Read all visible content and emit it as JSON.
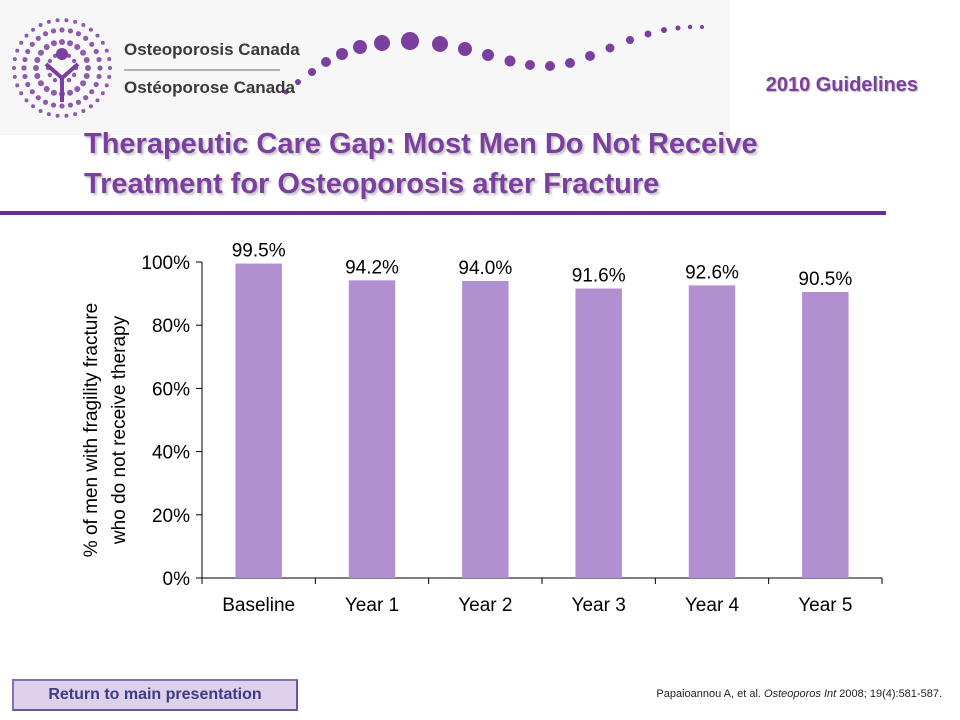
{
  "logo": {
    "name_en": "Osteoporosis Canada",
    "name_fr": "Ostéoporose Canada",
    "brand_color": "#7b3fa0"
  },
  "header": {
    "guidelines_label": "2010 Guidelines"
  },
  "slide": {
    "title": "Therapeutic Care Gap: Most Men Do Not Receive Treatment for Osteoporosis after Fracture"
  },
  "chart_data": {
    "type": "bar",
    "categories": [
      "Baseline",
      "Year 1",
      "Year 2",
      "Year 3",
      "Year 4",
      "Year 5"
    ],
    "values": [
      99.5,
      94.2,
      94.0,
      91.6,
      92.6,
      90.5
    ],
    "data_labels": [
      "99.5%",
      "94.2%",
      "94.0%",
      "91.6%",
      "92.6%",
      "90.5%"
    ],
    "ylabel_line1": "% of men with fragility fracture",
    "ylabel_line2": "who do not receive therapy",
    "ylim": [
      0,
      100
    ],
    "yticks": [
      0,
      20,
      40,
      60,
      80,
      100
    ],
    "ytick_labels": [
      "0%",
      "20%",
      "40%",
      "60%",
      "80%",
      "100%"
    ],
    "grid": false,
    "legend": "none",
    "bar_color": "#b28fd1"
  },
  "footer": {
    "return_label": "Return to main presentation",
    "citation_authors": "Papaioannou A, et al.",
    "citation_journal": "Osteoporos Int",
    "citation_details": "2008; 19(4):581-587."
  }
}
